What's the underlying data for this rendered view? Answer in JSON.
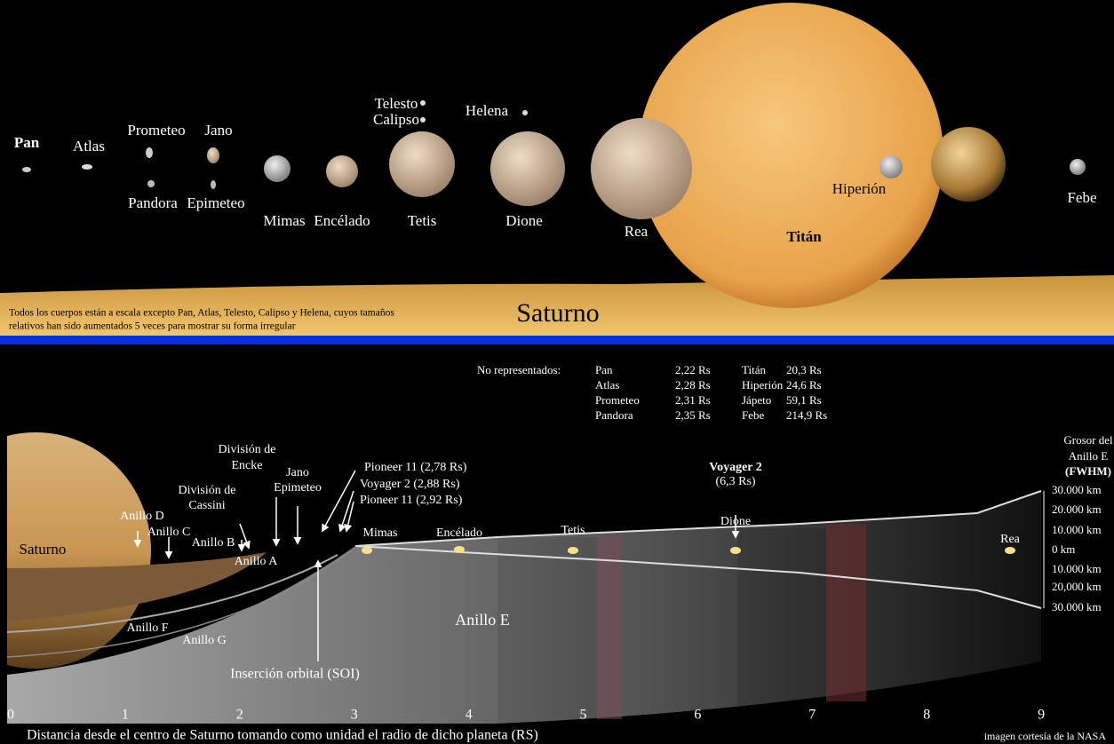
{
  "top": {
    "moons": [
      "Pan",
      "Atlas",
      "Prometeo",
      "Pandora",
      "Jano",
      "Epimeteo",
      "Mimas",
      "Encélado",
      "Telesto",
      "Calipso",
      "Tetis",
      "Helena",
      "Dione",
      "Rea",
      "Titán",
      "Hiperión",
      "Jápeto",
      "Febe"
    ],
    "planet": "Saturno",
    "note": [
      "Todos los cuerpos están a escala excepto Pan, Atlas, Telesto, Calipso y Helena, cuyos tamaños",
      "relativos han sido aumentados 5 veces para mostrar su forma irregular"
    ]
  },
  "table": {
    "header": "No representados:",
    "rows": [
      [
        "Pan",
        "2,22 Rs",
        "Titán",
        "20,3 Rs"
      ],
      [
        "Atlas",
        "2,28 Rs",
        "Hiperión",
        "24,6 Rs"
      ],
      [
        "Prometeo",
        "2,31 Rs",
        "Jápeto",
        "59,1 Rs"
      ],
      [
        "Pandora",
        "2,35 Rs",
        "Febe",
        "214,9 Rs"
      ]
    ]
  },
  "diagram": {
    "planet": "Saturno",
    "rings": [
      "Anillo D",
      "Anillo C",
      "Anillo B",
      "Anillo A",
      "Anillo F",
      "Anillo G",
      "Anillo E"
    ],
    "cassini": [
      "División de",
      "Cassini"
    ],
    "encke": [
      "División de",
      "Encke"
    ],
    "janus": [
      "Jano",
      "Epimeteo"
    ],
    "probes": [
      "Pioneer 11 (2,78 Rs)",
      "Voyager 2 (2,88 Rs)",
      "Pioneer 11 (2,92 Rs)"
    ],
    "soi": "Inserción orbital (SOI)",
    "voyager": [
      "Voyager 2",
      "(6,3 Rs)"
    ],
    "moons": [
      "Mimas",
      "Encélado",
      "Tetis",
      "Dione",
      "Rea"
    ],
    "thickness_title": [
      "Grosor del",
      "Anillo E",
      "(FWHM)"
    ],
    "thickness_labels": [
      "30.000 km",
      "20.000 km",
      "10.000 km",
      "0 km",
      "10.000 km",
      "20,000 km",
      "30.000 km"
    ],
    "axis_labels": [
      "0",
      "1",
      "2",
      "3",
      "4",
      "5",
      "6",
      "7",
      "8",
      "9"
    ],
    "caption": "Distancia desde el centro de Saturno tomando como unidad el radio de dicho planeta (RS)",
    "credit": "imagen cortesía de la NASA"
  }
}
